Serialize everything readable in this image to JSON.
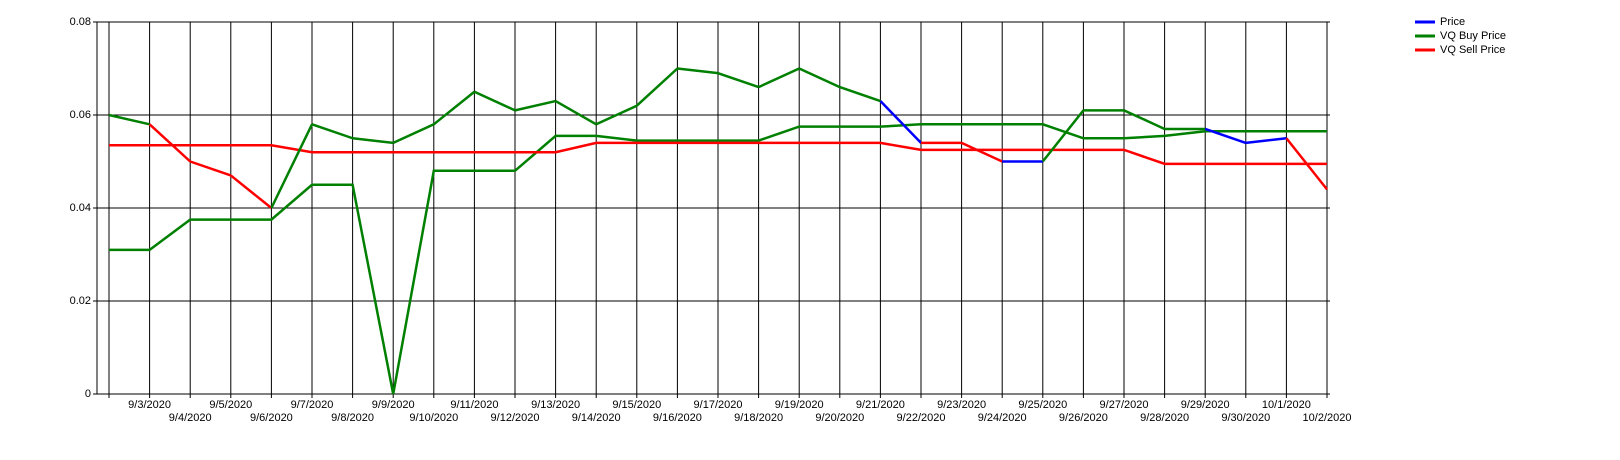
{
  "chart_data": {
    "type": "line",
    "x": [
      null,
      "9/3/2020",
      "9/4/2020",
      "9/5/2020",
      "9/6/2020",
      "9/7/2020",
      "9/8/2020",
      "9/9/2020",
      "9/10/2020",
      "9/11/2020",
      "9/12/2020",
      "9/13/2020",
      "9/14/2020",
      "9/15/2020",
      "9/16/2020",
      "9/17/2020",
      "9/18/2020",
      "9/19/2020",
      "9/20/2020",
      "9/21/2020",
      "9/22/2020",
      "9/23/2020",
      "9/24/2020",
      "9/25/2020",
      "9/26/2020",
      "9/27/2020",
      "9/28/2020",
      "9/29/2020",
      "9/30/2020",
      "10/1/2020",
      "10/2/2020"
    ],
    "series": [
      {
        "name": "Price",
        "color": "#0000ff",
        "segment_colors": [
          "#008000",
          "#008000",
          "#ff0000",
          "#ff0000",
          "#ff0000",
          "#008000",
          "#008000",
          "#008000",
          "#008000",
          "#008000",
          "#008000",
          "#008000",
          "#008000",
          "#008000",
          "#008000",
          "#008000",
          "#008000",
          "#008000",
          "#008000",
          "#008000",
          "#0000ff",
          "#ff0000",
          "#ff0000",
          "#0000ff",
          "#008000",
          "#008000",
          "#008000",
          "#008000",
          "#0000ff",
          "#0000ff",
          "#ff0000"
        ],
        "values": [
          0.06,
          0.058,
          0.05,
          0.047,
          0.04,
          0.058,
          0.055,
          0.054,
          0.058,
          0.065,
          0.061,
          0.063,
          0.058,
          0.062,
          0.07,
          0.069,
          0.066,
          0.07,
          0.066,
          0.063,
          0.054,
          0.054,
          0.05,
          0.05,
          0.061,
          0.061,
          0.057,
          0.057,
          0.054,
          0.055,
          0.044
        ]
      },
      {
        "name": "VQ Buy Price",
        "color": "#008000",
        "values": [
          0.031,
          0.031,
          0.0375,
          0.0375,
          0.0375,
          0.045,
          0.045,
          0,
          0.048,
          0.048,
          0.048,
          0.0555,
          0.0555,
          0.0545,
          0.0545,
          0.0545,
          0.0545,
          0.0575,
          0.0575,
          0.0575,
          0.058,
          0.058,
          0.058,
          0.058,
          0.055,
          0.055,
          0.0555,
          0.0565,
          0.0565,
          0.0565,
          0.0565
        ]
      },
      {
        "name": "VQ Sell Price",
        "color": "#ff0000",
        "values": [
          0.0535,
          0.0535,
          0.0535,
          0.0535,
          0.0535,
          0.052,
          0.052,
          0.052,
          0.052,
          0.052,
          0.052,
          0.052,
          0.054,
          0.054,
          0.054,
          0.054,
          0.054,
          0.054,
          0.054,
          0.054,
          0.0525,
          0.0525,
          0.0525,
          0.0525,
          0.0525,
          0.0525,
          0.0495,
          0.0495,
          0.0495,
          0.0495,
          0.0495
        ]
      }
    ],
    "ylim": [
      0,
      0.08
    ],
    "yticks": [
      0,
      0.02,
      0.04,
      0.06,
      0.08
    ],
    "grid": true
  }
}
